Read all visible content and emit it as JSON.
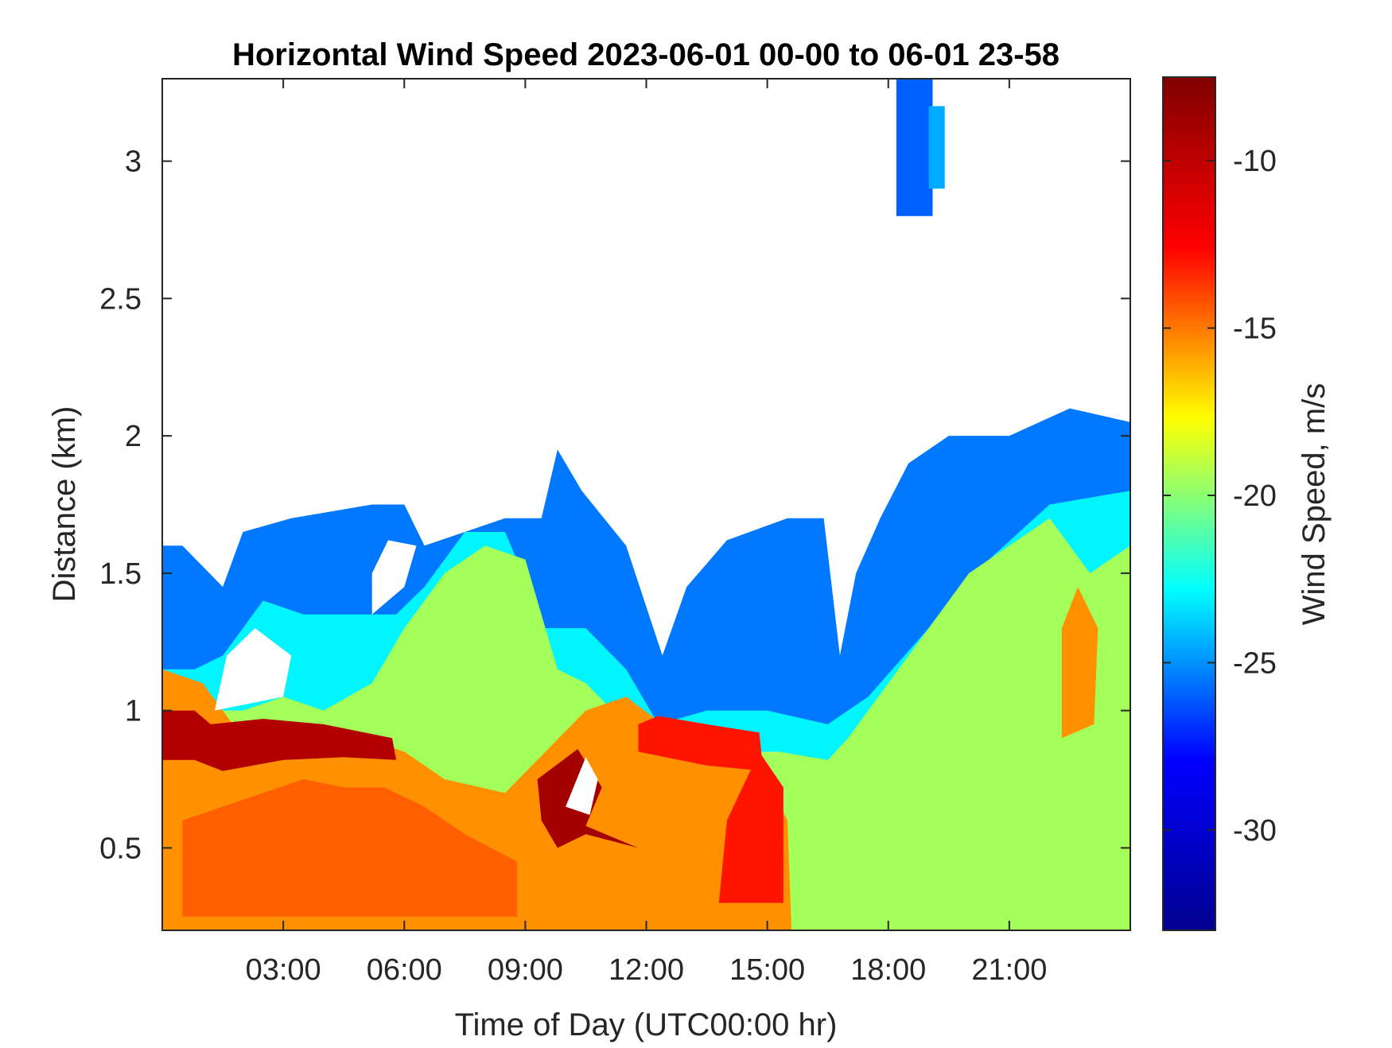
{
  "chart_data": {
    "type": "heatmap",
    "title": "Horizontal Wind Speed 2023-06-01 00-00 to 06-01 23-58",
    "xlabel": "Time of Day (UTC00:00 hr)",
    "ylabel": "Distance (km)",
    "colorbar_label": "Wind Speed, m/s",
    "xlim_hours": [
      0,
      24
    ],
    "ylim_km": [
      0.2,
      3.3
    ],
    "clim": [
      -33,
      -7.5
    ],
    "x_ticks": [
      {
        "value": 3,
        "label": "03:00"
      },
      {
        "value": 6,
        "label": "06:00"
      },
      {
        "value": 9,
        "label": "09:00"
      },
      {
        "value": 12,
        "label": "12:00"
      },
      {
        "value": 15,
        "label": "15:00"
      },
      {
        "value": 18,
        "label": "18:00"
      },
      {
        "value": 21,
        "label": "21:00"
      }
    ],
    "y_ticks": [
      {
        "value": 0.5,
        "label": "0.5"
      },
      {
        "value": 1,
        "label": "1"
      },
      {
        "value": 1.5,
        "label": "1.5"
      },
      {
        "value": 2,
        "label": "2"
      },
      {
        "value": 2.5,
        "label": "2.5"
      },
      {
        "value": 3,
        "label": "3"
      }
    ],
    "colorbar_ticks": [
      {
        "value": -10,
        "label": "-10"
      },
      {
        "value": -15,
        "label": "-15"
      },
      {
        "value": -20,
        "label": "-20"
      },
      {
        "value": -25,
        "label": "-25"
      },
      {
        "value": -30,
        "label": "-30"
      }
    ],
    "colormap": "jet",
    "colormap_stops": [
      "#00008f",
      "#0000ff",
      "#00ffff",
      "#ffff00",
      "#ff0000",
      "#800000"
    ],
    "grid": false,
    "layers": [
      {
        "polygon_hours_km": [
          [
            0,
            0.2
          ],
          [
            24,
            0.2
          ],
          [
            24,
            2.05
          ],
          [
            22.5,
            2.1
          ],
          [
            21,
            2.0
          ],
          [
            19.5,
            2.0
          ],
          [
            18.5,
            1.9
          ],
          [
            17.8,
            1.7
          ],
          [
            17.2,
            1.5
          ],
          [
            16.8,
            1.2
          ],
          [
            16.4,
            1.7
          ],
          [
            15.5,
            1.7
          ],
          [
            14,
            1.62
          ],
          [
            13,
            1.45
          ],
          [
            12.4,
            1.2
          ],
          [
            11.5,
            1.6
          ],
          [
            10.4,
            1.8
          ],
          [
            9.8,
            1.95
          ],
          [
            9.4,
            1.7
          ],
          [
            8.5,
            1.7
          ],
          [
            7.5,
            1.65
          ],
          [
            6.5,
            1.6
          ],
          [
            6.0,
            1.75
          ],
          [
            5.2,
            1.75
          ],
          [
            4.0,
            1.72
          ],
          [
            3.2,
            1.7
          ],
          [
            2.0,
            1.65
          ],
          [
            1.5,
            1.45
          ],
          [
            0.5,
            1.6
          ],
          [
            0,
            1.6
          ]
        ],
        "value": -25.5
      },
      {
        "polygon_hours_km": [
          [
            0,
            0.2
          ],
          [
            24,
            0.2
          ],
          [
            24,
            1.8
          ],
          [
            22,
            1.75
          ],
          [
            20.5,
            1.55
          ],
          [
            19,
            1.3
          ],
          [
            17.5,
            1.05
          ],
          [
            16.5,
            0.95
          ],
          [
            15,
            1.0
          ],
          [
            13.5,
            1.0
          ],
          [
            12.3,
            0.95
          ],
          [
            11.5,
            1.15
          ],
          [
            10.5,
            1.3
          ],
          [
            9.5,
            1.3
          ],
          [
            8.5,
            1.65
          ],
          [
            7.5,
            1.65
          ],
          [
            6.5,
            1.45
          ],
          [
            5.8,
            1.35
          ],
          [
            5.0,
            1.35
          ],
          [
            3.5,
            1.35
          ],
          [
            2.5,
            1.4
          ],
          [
            1.5,
            1.2
          ],
          [
            0.8,
            1.15
          ],
          [
            0,
            1.15
          ]
        ],
        "value": -23.0
      },
      {
        "polygon_hours_km": [
          [
            0,
            0.2
          ],
          [
            24,
            0.2
          ],
          [
            24,
            1.6
          ],
          [
            23,
            1.5
          ],
          [
            22,
            1.7
          ],
          [
            21,
            1.6
          ],
          [
            20,
            1.5
          ],
          [
            19,
            1.3
          ],
          [
            18,
            1.1
          ],
          [
            17,
            0.9
          ],
          [
            16.5,
            0.82
          ],
          [
            15.3,
            0.85
          ],
          [
            13.5,
            0.85
          ],
          [
            12.5,
            0.75
          ],
          [
            11.5,
            0.95
          ],
          [
            10.5,
            1.1
          ],
          [
            9.8,
            1.15
          ],
          [
            9.0,
            1.55
          ],
          [
            8.0,
            1.6
          ],
          [
            7.0,
            1.5
          ],
          [
            6.0,
            1.3
          ],
          [
            5.2,
            1.1
          ],
          [
            4.0,
            1.0
          ],
          [
            3.0,
            1.05
          ],
          [
            2.0,
            1.0
          ],
          [
            0,
            1.0
          ]
        ],
        "value": -19.5
      },
      {
        "polygon_hours_km": [
          [
            0,
            0.2
          ],
          [
            15.6,
            0.2
          ],
          [
            15.5,
            0.6
          ],
          [
            14.8,
            0.8
          ],
          [
            13.5,
            0.85
          ],
          [
            12.4,
            0.95
          ],
          [
            11.5,
            1.05
          ],
          [
            10.5,
            1.0
          ],
          [
            9.5,
            0.85
          ],
          [
            8.5,
            0.7
          ],
          [
            7.0,
            0.75
          ],
          [
            6.0,
            0.85
          ],
          [
            5.0,
            0.9
          ],
          [
            4.0,
            0.95
          ],
          [
            3.0,
            0.95
          ],
          [
            2.0,
            0.9
          ],
          [
            1.0,
            1.1
          ],
          [
            0,
            1.15
          ]
        ],
        "value": -15.5
      },
      {
        "polygon_hours_km": [
          [
            0.5,
            0.25
          ],
          [
            8.8,
            0.25
          ],
          [
            8.8,
            0.45
          ],
          [
            7.5,
            0.55
          ],
          [
            6.5,
            0.65
          ],
          [
            5.5,
            0.72
          ],
          [
            4.5,
            0.72
          ],
          [
            3.5,
            0.75
          ],
          [
            2.5,
            0.7
          ],
          [
            1.5,
            0.65
          ],
          [
            0.5,
            0.6
          ]
        ],
        "value": -14.5
      },
      {
        "polygon_hours_km": [
          [
            13.8,
            0.3
          ],
          [
            15.4,
            0.3
          ],
          [
            15.4,
            0.72
          ],
          [
            14.8,
            0.85
          ],
          [
            14.0,
            0.6
          ]
        ],
        "value": -13.0
      },
      {
        "polygon_hours_km": [
          [
            11.8,
            0.85
          ],
          [
            13.5,
            0.8
          ],
          [
            14.9,
            0.78
          ],
          [
            14.8,
            0.92
          ],
          [
            13.5,
            0.95
          ],
          [
            12.3,
            0.98
          ],
          [
            11.8,
            0.95
          ]
        ],
        "value": -13.0
      },
      {
        "polygon_hours_km": [
          [
            22.3,
            0.9
          ],
          [
            23.1,
            0.95
          ],
          [
            23.2,
            1.3
          ],
          [
            22.7,
            1.45
          ],
          [
            22.3,
            1.3
          ]
        ],
        "value": -15.5
      },
      {
        "polygon_hours_km": [
          [
            0,
            1.0
          ],
          [
            0.8,
            1.0
          ],
          [
            1.2,
            0.95
          ],
          [
            2.5,
            0.97
          ],
          [
            4.0,
            0.95
          ],
          [
            5.7,
            0.9
          ],
          [
            5.8,
            0.82
          ],
          [
            4.5,
            0.83
          ],
          [
            3.0,
            0.82
          ],
          [
            1.5,
            0.78
          ],
          [
            0.8,
            0.82
          ],
          [
            0,
            0.82
          ]
        ],
        "value": -9.5
      },
      {
        "polygon_hours_km": [
          [
            9.3,
            0.75
          ],
          [
            10.3,
            0.86
          ],
          [
            10.9,
            0.72
          ],
          [
            10.5,
            0.58
          ],
          [
            11.8,
            0.5
          ],
          [
            10.5,
            0.55
          ],
          [
            9.8,
            0.5
          ],
          [
            9.4,
            0.6
          ]
        ],
        "value": -9.0
      },
      {
        "polygon_hours_km": [
          [
            18.2,
            2.8
          ],
          [
            19.1,
            2.8
          ],
          [
            19.1,
            3.3
          ],
          [
            18.2,
            3.3
          ]
        ],
        "value": -26.0
      },
      {
        "polygon_hours_km": [
          [
            19.0,
            2.9
          ],
          [
            19.4,
            2.9
          ],
          [
            19.4,
            3.2
          ],
          [
            19.0,
            3.2
          ]
        ],
        "value": -24.5
      }
    ],
    "no_data_gaps": [
      [
        [
          1.3,
          1.0
        ],
        [
          3.0,
          1.05
        ],
        [
          3.2,
          1.2
        ],
        [
          2.3,
          1.3
        ],
        [
          1.6,
          1.2
        ]
      ],
      [
        [
          5.2,
          1.35
        ],
        [
          6.0,
          1.45
        ],
        [
          6.3,
          1.6
        ],
        [
          5.6,
          1.62
        ],
        [
          5.2,
          1.5
        ]
      ],
      [
        [
          10.0,
          0.65
        ],
        [
          10.5,
          0.83
        ],
        [
          10.8,
          0.75
        ],
        [
          10.6,
          0.62
        ]
      ]
    ]
  }
}
